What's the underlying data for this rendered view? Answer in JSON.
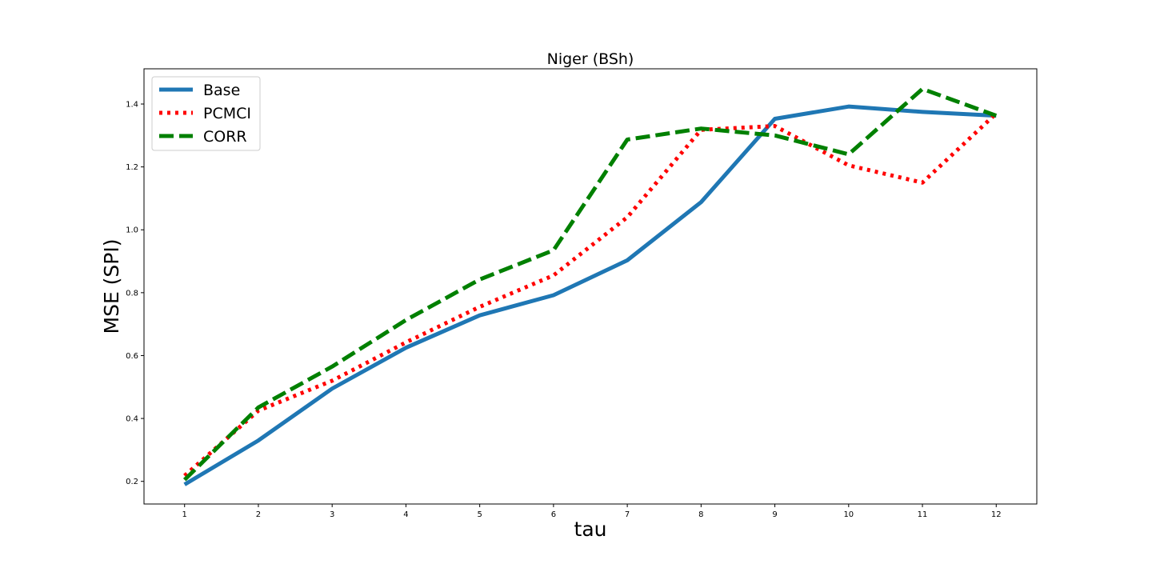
{
  "chart_data": {
    "type": "line",
    "title": "Niger (BSh)",
    "xlabel": "tau",
    "ylabel": "MSE (SPI)",
    "x": [
      1,
      2,
      3,
      4,
      5,
      6,
      7,
      8,
      9,
      10,
      11,
      12
    ],
    "x_ticks": [
      "1",
      "2",
      "3",
      "4",
      "5",
      "6",
      "7",
      "8",
      "9",
      "10",
      "11",
      "12"
    ],
    "y_ticks": [
      "0.2",
      "0.4",
      "0.6",
      "0.8",
      "1.0",
      "1.2",
      "1.4"
    ],
    "xlim": [
      0.45,
      12.55
    ],
    "ylim": [
      0.128,
      1.512
    ],
    "grid": false,
    "legend_position": "top-left",
    "series": [
      {
        "name": "Base",
        "color": "#1f77b4",
        "style": "solid",
        "values": [
          0.19,
          0.33,
          0.495,
          0.625,
          0.728,
          0.792,
          0.903,
          1.088,
          1.353,
          1.392,
          1.375,
          1.363
        ]
      },
      {
        "name": "PCMCI",
        "color": "#ff0000",
        "style": "dotted",
        "values": [
          0.218,
          0.425,
          0.52,
          0.642,
          0.755,
          0.855,
          1.04,
          1.318,
          1.33,
          1.205,
          1.15,
          1.37
        ]
      },
      {
        "name": "CORR",
        "color": "#008000",
        "style": "dashed",
        "values": [
          0.205,
          0.435,
          0.565,
          0.713,
          0.842,
          0.935,
          1.287,
          1.322,
          1.3,
          1.24,
          1.448,
          1.363
        ]
      }
    ]
  }
}
